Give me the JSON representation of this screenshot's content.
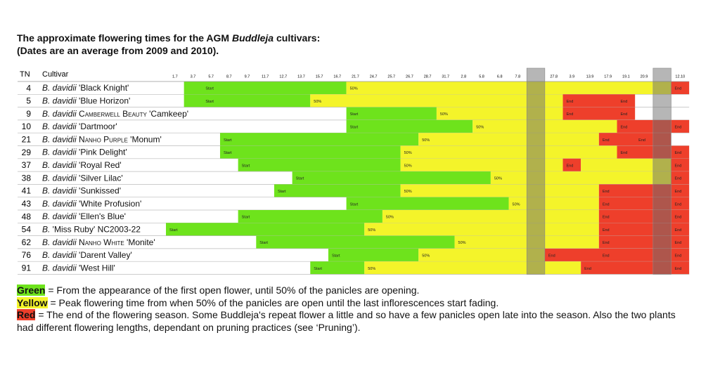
{
  "header": {
    "title": [
      [
        {
          "text": "The approximate flowering times for the AGM "
        },
        {
          "text": "Buddleja",
          "style": "italic"
        },
        {
          "text": " cultivars:"
        }
      ],
      [
        {
          "text": "(Dates are an average from 2009 and 2010)."
        }
      ]
    ]
  },
  "table": {
    "tn_header": "TN",
    "cultivar_header": "Cultivar",
    "columns": [
      "1.7",
      "3.7",
      "5.7",
      "8.7",
      "9.7",
      "11.7",
      "12.7",
      "13.7",
      "15.7",
      "16.7",
      "21.7",
      "24.7",
      "25.7",
      "26.7",
      "28.7",
      "31.7",
      "2.8",
      "5.8",
      "6.8",
      "7.8",
      null,
      "27.8",
      "3.9",
      "13.9",
      "17.9",
      "19.1",
      "20.9",
      null,
      "12.10"
    ],
    "rows": [
      {
        "tn": "4",
        "cultivar": [
          {
            "text": "B. davidii",
            "style": "italic"
          },
          {
            "text": " 'Black Knight'"
          }
        ],
        "segments": [
          {
            "color": "green",
            "from": "3.7",
            "until": "21.7"
          },
          {
            "color": "yellow",
            "from": "21.7",
            "until": "12.10"
          },
          {
            "color": "red",
            "from": "12.10"
          }
        ],
        "labels": [
          {
            "text": "Start",
            "at": "5.7"
          },
          {
            "text": "50%",
            "at": "21.7"
          },
          {
            "text": "End",
            "at": "12.10"
          }
        ]
      },
      {
        "tn": "5",
        "cultivar": [
          {
            "text": "B. davidii",
            "style": "italic"
          },
          {
            "text": " 'Blue Horizon'"
          }
        ],
        "segments": [
          {
            "color": "green",
            "from": "3.7",
            "until": "15.7"
          },
          {
            "color": "yellow",
            "from": "15.7",
            "until": "3.9"
          },
          {
            "color": "red",
            "from": "3.9",
            "until": "20.9"
          }
        ],
        "labels": [
          {
            "text": "Start",
            "at": "5.7"
          },
          {
            "text": "50%",
            "at": "15.7"
          },
          {
            "text": "End",
            "at": "3.9"
          },
          {
            "text": "End",
            "at": "19.1"
          }
        ]
      },
      {
        "tn": "9",
        "cultivar": [
          {
            "text": "B. davidii ",
            "style": "italic"
          },
          {
            "text": "Camberwell Beauty",
            "style": "smallcaps"
          },
          {
            "text": " 'Camkeep'"
          }
        ],
        "segments": [
          {
            "color": "green",
            "from": "21.7",
            "until": "31.7"
          },
          {
            "color": "yellow",
            "from": "31.7",
            "until": "3.9"
          },
          {
            "color": "red",
            "from": "3.9",
            "until": "20.9"
          }
        ],
        "labels": [
          {
            "text": "Start",
            "at": "21.7"
          },
          {
            "text": "50%",
            "at": "31.7"
          },
          {
            "text": "End",
            "at": "3.9"
          },
          {
            "text": "End",
            "at": "19.1"
          }
        ]
      },
      {
        "tn": "10",
        "cultivar": [
          {
            "text": "B. davidii",
            "style": "italic"
          },
          {
            "text": " 'Dartmoor'"
          }
        ],
        "segments": [
          {
            "color": "green",
            "from": "21.7",
            "until": "5.8"
          },
          {
            "color": "yellow",
            "from": "5.8",
            "until": "19.1"
          },
          {
            "color": "red",
            "from": "19.1"
          }
        ],
        "labels": [
          {
            "text": "Start",
            "at": "21.7"
          },
          {
            "text": "50%",
            "at": "5.8"
          },
          {
            "text": "End",
            "at": "19.1"
          },
          {
            "text": "End",
            "at": "12.10"
          }
        ]
      },
      {
        "tn": "21",
        "cultivar": [
          {
            "text": "B. davidii ",
            "style": "italic"
          },
          {
            "text": "Nanho Purple",
            "style": "smallcaps"
          },
          {
            "text": " 'Monum'"
          }
        ],
        "segments": [
          {
            "color": "green",
            "from": "8.7",
            "until": "28.7"
          },
          {
            "color": "yellow",
            "from": "28.7",
            "until": "17.9"
          },
          {
            "color": "red",
            "from": "17.9",
            "until": "12.10"
          }
        ],
        "labels": [
          {
            "text": "Start",
            "at": "8.7"
          },
          {
            "text": "50%",
            "at": "28.7"
          },
          {
            "text": "End",
            "at": "17.9"
          },
          {
            "text": "End",
            "at": "20.9"
          }
        ]
      },
      {
        "tn": "29",
        "cultivar": [
          {
            "text": "B. davidii",
            "style": "italic"
          },
          {
            "text": " 'Pink Delight'"
          }
        ],
        "segments": [
          {
            "color": "green",
            "from": "8.7",
            "until": "26.7"
          },
          {
            "color": "yellow",
            "from": "26.7",
            "until": "19.1"
          },
          {
            "color": "red",
            "from": "19.1"
          }
        ],
        "labels": [
          {
            "text": "Start",
            "at": "8.7"
          },
          {
            "text": "50%",
            "at": "26.7"
          },
          {
            "text": "End",
            "at": "19.1"
          },
          {
            "text": "End",
            "at": "12.10"
          }
        ]
      },
      {
        "tn": "37",
        "cultivar": [
          {
            "text": "B. davidii",
            "style": "italic"
          },
          {
            "text": " 'Royal Red'"
          }
        ],
        "segments": [
          {
            "color": "green",
            "from": "9.7",
            "until": "26.7"
          },
          {
            "color": "yellow",
            "from": "26.7",
            "until": "3.9"
          },
          {
            "color": "red",
            "from": "3.9",
            "until": "13.9"
          },
          {
            "color": "yellow",
            "from": "13.9",
            "until": "12.10"
          },
          {
            "color": "red",
            "from": "12.10"
          }
        ],
        "labels": [
          {
            "text": "Start",
            "at": "9.7"
          },
          {
            "text": "50%",
            "at": "26.7"
          },
          {
            "text": "End",
            "at": "3.9"
          },
          {
            "text": "End",
            "at": "12.10"
          }
        ]
      },
      {
        "tn": "38",
        "cultivar": [
          {
            "text": "B. davidii",
            "style": "italic"
          },
          {
            "text": " 'Silver Lilac'"
          }
        ],
        "segments": [
          {
            "color": "green",
            "from": "13.7",
            "until": "6.8"
          },
          {
            "color": "yellow",
            "from": "6.8",
            "until": "12.10"
          },
          {
            "color": "red",
            "from": "12.10"
          }
        ],
        "labels": [
          {
            "text": "Start",
            "at": "13.7"
          },
          {
            "text": "50%",
            "at": "6.8"
          },
          {
            "text": "End",
            "at": "12.10"
          }
        ]
      },
      {
        "tn": "41",
        "cultivar": [
          {
            "text": "B. davidii",
            "style": "italic"
          },
          {
            "text": " 'Sunkissed'"
          }
        ],
        "segments": [
          {
            "color": "green",
            "from": "12.7",
            "until": "26.7"
          },
          {
            "color": "yellow",
            "from": "26.7",
            "until": "17.9"
          },
          {
            "color": "red",
            "from": "17.9"
          }
        ],
        "labels": [
          {
            "text": "Start",
            "at": "12.7"
          },
          {
            "text": "50%",
            "at": "26.7"
          },
          {
            "text": "End",
            "at": "17.9"
          },
          {
            "text": "End",
            "at": "12.10"
          }
        ]
      },
      {
        "tn": "43",
        "cultivar": [
          {
            "text": "B. davidii",
            "style": "italic"
          },
          {
            "text": " 'White Profusion'"
          }
        ],
        "segments": [
          {
            "color": "green",
            "from": "21.7",
            "until": "7.8"
          },
          {
            "color": "yellow",
            "from": "7.8",
            "until": "17.9"
          },
          {
            "color": "red",
            "from": "17.9"
          }
        ],
        "labels": [
          {
            "text": "Start",
            "at": "21.7"
          },
          {
            "text": "50%",
            "at": "7.8"
          },
          {
            "text": "End",
            "at": "17.9"
          },
          {
            "text": "End",
            "at": "12.10"
          }
        ]
      },
      {
        "tn": "48",
        "cultivar": [
          {
            "text": "B. davidii",
            "style": "italic"
          },
          {
            "text": " 'Ellen's Blue'"
          }
        ],
        "segments": [
          {
            "color": "green",
            "from": "9.7",
            "until": "25.7"
          },
          {
            "color": "yellow",
            "from": "25.7",
            "until": "17.9"
          },
          {
            "color": "red",
            "from": "17.9"
          }
        ],
        "labels": [
          {
            "text": "Start",
            "at": "9.7"
          },
          {
            "text": "50%",
            "at": "25.7"
          },
          {
            "text": "End",
            "at": "17.9"
          },
          {
            "text": "End",
            "at": "12.10"
          }
        ]
      },
      {
        "tn": "54",
        "cultivar": [
          {
            "text": "B.",
            "style": "italic"
          },
          {
            "text": " 'Miss Ruby' NC2003-22"
          }
        ],
        "segments": [
          {
            "color": "green",
            "from": "1.7",
            "until": "24.7"
          },
          {
            "color": "yellow",
            "from": "24.7",
            "until": "17.9"
          },
          {
            "color": "red",
            "from": "17.9"
          }
        ],
        "labels": [
          {
            "text": "Start",
            "at": "1.7"
          },
          {
            "text": "50%",
            "at": "24.7"
          },
          {
            "text": "End",
            "at": "17.9"
          },
          {
            "text": "End",
            "at": "12.10"
          }
        ]
      },
      {
        "tn": "62",
        "cultivar": [
          {
            "text": "B. davidii ",
            "style": "italic"
          },
          {
            "text": "Nanho White",
            "style": "smallcaps"
          },
          {
            "text": " 'Monite'"
          }
        ],
        "segments": [
          {
            "color": "green",
            "from": "11.7",
            "until": "2.8"
          },
          {
            "color": "yellow",
            "from": "2.8",
            "until": "17.9"
          },
          {
            "color": "red",
            "from": "17.9"
          }
        ],
        "labels": [
          {
            "text": "Start",
            "at": "11.7"
          },
          {
            "text": "50%",
            "at": "2.8"
          },
          {
            "text": "End",
            "at": "17.9"
          },
          {
            "text": "End",
            "at": "12.10"
          }
        ]
      },
      {
        "tn": "76",
        "cultivar": [
          {
            "text": "B. davidii",
            "style": "italic"
          },
          {
            "text": " 'Darent Valley'"
          }
        ],
        "segments": [
          {
            "color": "green",
            "from": "16.7",
            "until": "28.7"
          },
          {
            "color": "yellow",
            "from": "28.7",
            "until": "27.8"
          },
          {
            "color": "red",
            "from": "27.8"
          }
        ],
        "labels": [
          {
            "text": "Start",
            "at": "16.7"
          },
          {
            "text": "50%",
            "at": "28.7"
          },
          {
            "text": "End",
            "at": "27.8"
          },
          {
            "text": "End",
            "at": "17.9"
          },
          {
            "text": "End",
            "at": "12.10"
          }
        ]
      },
      {
        "tn": "91",
        "cultivar": [
          {
            "text": "B. davidii",
            "style": "italic"
          },
          {
            "text": " 'West Hill'"
          }
        ],
        "segments": [
          {
            "color": "green",
            "from": "15.7",
            "until": "24.7"
          },
          {
            "color": "yellow",
            "from": "24.7",
            "until": "13.9"
          },
          {
            "color": "red",
            "from": "13.9"
          }
        ],
        "labels": [
          {
            "text": "Start",
            "at": "15.7"
          },
          {
            "text": "50%",
            "at": "24.7"
          },
          {
            "text": "End",
            "at": "13.9"
          },
          {
            "text": "End",
            "at": "12.10"
          }
        ]
      }
    ]
  },
  "legend": [
    {
      "key": "Green",
      "color": "green",
      "text": " = From the appearance of the first open flower, until 50% of the panicles are opening."
    },
    {
      "key": "Yellow",
      "color": "yellow",
      "text": " = Peak flowering time from when 50% of the panicles are open until the last inflorescences start fading."
    },
    {
      "key": "Red",
      "color": "red",
      "text": " = The end of the flowering season. Some Buddleja's repeat flower a little and so have a few panicles open late into the season. Also the two plants had different flowering lengths, dependant on pruning practices (see ‘Pruning’)."
    }
  ]
}
